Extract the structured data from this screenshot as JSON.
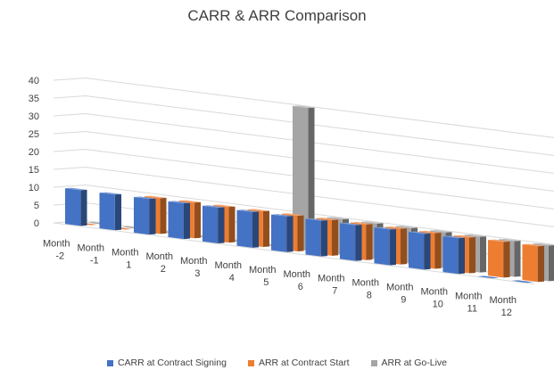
{
  "chart_data": {
    "type": "bar",
    "title": "CARR & ARR Comparison",
    "categories": [
      "Month -2",
      "Month -1",
      "Month 1",
      "Month 2",
      "Month 3",
      "Month 4",
      "Month 5",
      "Month 6",
      "Month 7",
      "Month 8",
      "Month 9",
      "Month 10",
      "Month 11",
      "Month 12"
    ],
    "series": [
      {
        "name": "CARR at Contract Signing",
        "color": "#4472C4",
        "values": [
          10,
          10,
          10,
          10,
          10,
          10,
          10,
          10,
          10,
          10,
          10,
          10,
          0,
          0
        ]
      },
      {
        "name": "ARR at Contract Start",
        "color": "#ED7D31",
        "values": [
          0,
          0,
          10,
          10,
          10,
          10,
          10,
          10,
          10,
          10,
          10,
          10,
          10,
          10
        ]
      },
      {
        "name": "ARR at Go-Live",
        "color": "#A5A5A5",
        "values": [
          0,
          0,
          0,
          0,
          0,
          0,
          40,
          10,
          10,
          10,
          10,
          10,
          10,
          10
        ]
      }
    ],
    "ylim": [
      0,
      40
    ],
    "yticks": [
      0,
      5,
      10,
      15,
      20,
      25,
      30,
      35,
      40
    ],
    "grid": true,
    "legend_position": "bottom"
  }
}
